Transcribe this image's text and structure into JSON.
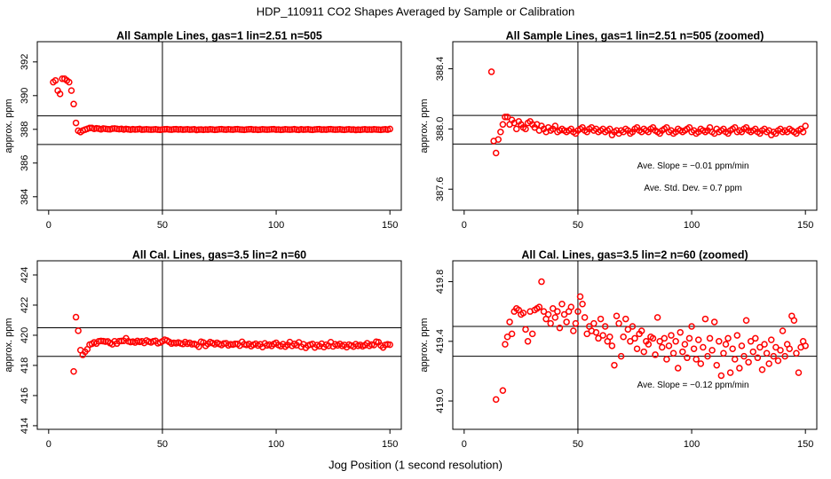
{
  "title": "HDP_110911  CO2 Shapes Averaged by Sample or Calibration",
  "xlabel": "Jog Position (1 second resolution)",
  "chart_data": [
    {
      "type": "scatter",
      "title": "All Sample Lines, gas=1 lin=2.51 n=505",
      "ylabel": "approx. ppm",
      "color": "#ff0000",
      "xlim": [
        -5,
        155
      ],
      "xticks": [
        0,
        50,
        100,
        150
      ],
      "ylim": [
        383.2,
        393.2
      ],
      "yticks": [
        384,
        386,
        388,
        390,
        392
      ],
      "hlines": [
        388.8,
        387.1
      ],
      "vlines": [
        50
      ],
      "x": [
        2,
        3,
        4,
        5,
        6,
        7,
        8,
        9,
        10,
        11,
        12,
        13,
        14,
        15,
        16,
        17,
        18,
        19,
        20,
        21,
        22,
        23,
        24,
        25,
        26,
        27,
        28,
        29,
        30,
        31,
        32,
        33,
        34,
        35,
        36,
        37,
        38,
        39,
        40,
        41,
        42,
        43,
        44,
        45,
        46,
        47,
        48,
        49,
        50,
        51,
        52,
        53,
        54,
        55,
        56,
        57,
        58,
        59,
        60,
        61,
        62,
        63,
        64,
        65,
        66,
        67,
        68,
        69,
        70,
        71,
        72,
        73,
        74,
        75,
        76,
        77,
        78,
        79,
        80,
        81,
        82,
        83,
        84,
        85,
        86,
        87,
        88,
        89,
        90,
        91,
        92,
        93,
        94,
        95,
        96,
        97,
        98,
        99,
        100,
        101,
        102,
        103,
        104,
        105,
        106,
        107,
        108,
        109,
        110,
        111,
        112,
        113,
        114,
        115,
        116,
        117,
        118,
        119,
        120,
        121,
        122,
        123,
        124,
        125,
        126,
        127,
        128,
        129,
        130,
        131,
        132,
        133,
        134,
        135,
        136,
        137,
        138,
        139,
        140,
        141,
        142,
        143,
        144,
        145,
        146,
        147,
        148,
        149,
        150
      ],
      "values": [
        390.8,
        390.9,
        390.3,
        390.1,
        391.0,
        391.0,
        390.9,
        390.8,
        390.3,
        389.5,
        388.38,
        387.92,
        387.84,
        387.93,
        387.98,
        388.03,
        388.08,
        388.08,
        388.03,
        388.06,
        388.04,
        388.0,
        388.05,
        388.03,
        388.01,
        388.0,
        388.04,
        388.05,
        388.03,
        388.01,
        388.03,
        387.99,
        388.02,
        388.0,
        387.98,
        388.01,
        387.99,
        388.0,
        388.02,
        387.98,
        387.99,
        388.0,
        387.99,
        387.98,
        387.99,
        388.0,
        387.98,
        387.97,
        387.99,
        388.0,
        388.01,
        387.99,
        387.98,
        388.0,
        388.01,
        387.99,
        388.0,
        387.98,
        387.99,
        388.0,
        387.98,
        387.99,
        388.0,
        387.96,
        387.98,
        387.99,
        387.97,
        387.99,
        387.98,
        388.0,
        387.99,
        387.97,
        387.98,
        388.0,
        388.01,
        387.99,
        387.98,
        388.0,
        387.99,
        387.98,
        388.0,
        388.01,
        387.99,
        387.98,
        387.97,
        387.99,
        388.0,
        388.01,
        387.98,
        387.99,
        387.97,
        387.98,
        388.0,
        387.99,
        387.98,
        387.99,
        388.0,
        388.01,
        387.98,
        387.99,
        387.97,
        387.98,
        388.0,
        387.99,
        387.98,
        387.99,
        388.01,
        387.98,
        387.97,
        388.0,
        387.98,
        387.99,
        388.0,
        387.98,
        387.97,
        387.99,
        388.0,
        388.01,
        387.98,
        387.99,
        387.98,
        388.0,
        388.01,
        387.99,
        387.98,
        387.99,
        388.0,
        387.98,
        387.97,
        387.99,
        388.0,
        387.98,
        387.99,
        387.96,
        387.98,
        387.97,
        387.99,
        388.0,
        387.98,
        387.99,
        387.98,
        388.0,
        387.99,
        387.98,
        387.97,
        387.99,
        388.0,
        387.98,
        388.02
      ]
    },
    {
      "type": "scatter",
      "title": "All Sample Lines, gas=1 lin=2.51 n=505 (zoomed)",
      "ylabel": "approx. ppm",
      "color": "#ff0000",
      "xlim": [
        -5,
        155
      ],
      "xticks": [
        0,
        50,
        100,
        150
      ],
      "ylim": [
        387.46,
        388.58
      ],
      "yticks": [
        387.6,
        {
          "value": 388,
          "label": "388.0"
        },
        388.4
      ],
      "hlines": [
        388.09,
        387.9
      ],
      "vlines": [
        50
      ],
      "annotations": [
        "Ave. Slope =  −0.01  ppm/min",
        "Ave. Std. Dev. =  0.7  ppm"
      ],
      "x": [
        12,
        13,
        14,
        15,
        16,
        17,
        18,
        19,
        20,
        21,
        22,
        23,
        24,
        25,
        26,
        27,
        28,
        29,
        30,
        31,
        32,
        33,
        34,
        35,
        36,
        37,
        38,
        39,
        40,
        41,
        42,
        43,
        44,
        45,
        46,
        47,
        48,
        49,
        50,
        51,
        52,
        53,
        54,
        55,
        56,
        57,
        58,
        59,
        60,
        61,
        62,
        63,
        64,
        65,
        66,
        67,
        68,
        69,
        70,
        71,
        72,
        73,
        74,
        75,
        76,
        77,
        78,
        79,
        80,
        81,
        82,
        83,
        84,
        85,
        86,
        87,
        88,
        89,
        90,
        91,
        92,
        93,
        94,
        95,
        96,
        97,
        98,
        99,
        100,
        101,
        102,
        103,
        104,
        105,
        106,
        107,
        108,
        109,
        110,
        111,
        112,
        113,
        114,
        115,
        116,
        117,
        118,
        119,
        120,
        121,
        122,
        123,
        124,
        125,
        126,
        127,
        128,
        129,
        130,
        131,
        132,
        133,
        134,
        135,
        136,
        137,
        138,
        139,
        140,
        141,
        142,
        143,
        144,
        145,
        146,
        147,
        148,
        149,
        150
      ],
      "values": [
        388.38,
        387.92,
        387.84,
        387.93,
        387.98,
        388.03,
        388.08,
        388.08,
        388.03,
        388.06,
        388.04,
        388.0,
        388.05,
        388.03,
        388.01,
        388.0,
        388.04,
        388.05,
        388.03,
        388.01,
        388.03,
        387.99,
        388.02,
        388.0,
        387.98,
        388.01,
        387.99,
        388.0,
        388.02,
        387.98,
        387.99,
        388.0,
        387.99,
        387.98,
        387.99,
        388.0,
        387.98,
        387.97,
        387.99,
        388.0,
        388.01,
        387.99,
        387.98,
        388.0,
        388.01,
        387.99,
        388.0,
        387.98,
        387.99,
        388.0,
        387.98,
        387.99,
        388.0,
        387.96,
        387.98,
        387.99,
        387.97,
        387.99,
        387.98,
        388.0,
        387.99,
        387.97,
        387.98,
        388.0,
        388.01,
        387.99,
        387.98,
        388.0,
        387.99,
        387.98,
        388.0,
        388.01,
        387.99,
        387.98,
        387.97,
        387.99,
        388.0,
        388.01,
        387.98,
        387.99,
        387.97,
        387.98,
        388.0,
        387.99,
        387.98,
        387.99,
        388.0,
        388.01,
        387.98,
        387.99,
        387.97,
        387.98,
        388.0,
        387.99,
        387.98,
        387.99,
        388.01,
        387.98,
        387.97,
        388.0,
        387.98,
        387.99,
        388.0,
        387.98,
        387.97,
        387.99,
        388.0,
        388.01,
        387.98,
        387.99,
        387.98,
        388.0,
        388.01,
        387.99,
        387.98,
        387.99,
        388.0,
        387.98,
        387.97,
        387.99,
        388.0,
        387.98,
        387.99,
        387.96,
        387.98,
        387.97,
        387.99,
        388.0,
        387.98,
        387.99,
        387.98,
        388.0,
        387.99,
        387.98,
        387.97,
        387.99,
        388.0,
        387.98,
        388.02
      ]
    },
    {
      "type": "scatter",
      "title": "All Cal. Lines, gas=3.5 lin=2 n=60",
      "ylabel": "approx. ppm",
      "color": "#ff0000",
      "xlim": [
        -5,
        155
      ],
      "xticks": [
        0,
        50,
        100,
        150
      ],
      "ylim": [
        413.76,
        424.94
      ],
      "yticks": [
        414,
        416,
        418,
        420,
        422,
        424
      ],
      "hlines": [
        420.5,
        418.6
      ],
      "vlines": [
        50
      ],
      "x": [
        11,
        12,
        13,
        14,
        15,
        16,
        17,
        18,
        19,
        20,
        21,
        22,
        23,
        24,
        25,
        26,
        27,
        28,
        29,
        30,
        31,
        32,
        33,
        34,
        35,
        36,
        37,
        38,
        39,
        40,
        41,
        42,
        43,
        44,
        45,
        46,
        47,
        48,
        49,
        50,
        51,
        52,
        53,
        54,
        55,
        56,
        57,
        58,
        59,
        60,
        61,
        62,
        63,
        64,
        65,
        66,
        67,
        68,
        69,
        70,
        71,
        72,
        73,
        74,
        75,
        76,
        77,
        78,
        79,
        80,
        81,
        82,
        83,
        84,
        85,
        86,
        87,
        88,
        89,
        90,
        91,
        92,
        93,
        94,
        95,
        96,
        97,
        98,
        99,
        100,
        101,
        102,
        103,
        104,
        105,
        106,
        107,
        108,
        109,
        110,
        111,
        112,
        113,
        114,
        115,
        116,
        117,
        118,
        119,
        120,
        121,
        122,
        123,
        124,
        125,
        126,
        127,
        128,
        129,
        130,
        131,
        132,
        133,
        134,
        135,
        136,
        137,
        138,
        139,
        140,
        141,
        142,
        143,
        144,
        145,
        146,
        147,
        148,
        149,
        150
      ],
      "values": [
        417.6,
        421.2,
        420.3,
        419.01,
        418.7,
        418.9,
        419.07,
        419.38,
        419.43,
        419.53,
        419.45,
        419.6,
        419.62,
        419.61,
        419.58,
        419.59,
        419.48,
        419.4,
        419.6,
        419.45,
        419.61,
        419.62,
        419.63,
        419.8,
        419.6,
        419.55,
        419.58,
        419.52,
        419.62,
        419.56,
        419.6,
        419.49,
        419.65,
        419.58,
        419.53,
        419.6,
        419.63,
        419.47,
        419.52,
        419.6,
        419.7,
        419.65,
        419.56,
        419.45,
        419.5,
        419.47,
        419.52,
        419.46,
        419.42,
        419.55,
        419.44,
        419.5,
        419.4,
        419.43,
        419.37,
        419.24,
        419.57,
        419.52,
        419.3,
        419.43,
        419.55,
        419.48,
        419.4,
        419.5,
        419.42,
        419.35,
        419.45,
        419.47,
        419.33,
        419.4,
        419.38,
        419.43,
        419.42,
        419.31,
        419.56,
        419.4,
        419.36,
        419.42,
        419.28,
        419.37,
        419.44,
        419.32,
        419.4,
        419.22,
        419.46,
        419.33,
        419.38,
        419.29,
        419.42,
        419.5,
        419.35,
        419.28,
        419.41,
        419.25,
        419.36,
        419.55,
        419.3,
        419.42,
        419.34,
        419.53,
        419.24,
        419.4,
        419.17,
        419.32,
        419.38,
        419.42,
        419.19,
        419.35,
        419.28,
        419.44,
        419.22,
        419.37,
        419.3,
        419.54,
        419.26,
        419.4,
        419.33,
        419.42,
        419.29,
        419.36,
        419.21,
        419.38,
        419.32,
        419.25,
        419.41,
        419.3,
        419.36,
        419.27,
        419.34,
        419.47,
        419.3,
        419.38,
        419.35,
        419.57,
        419.54,
        419.32,
        419.19,
        419.36,
        419.4,
        419.37
      ]
    },
    {
      "type": "scatter",
      "title": "All Cal. Lines, gas=3.5 lin=2 n=60 (zoomed)",
      "ylabel": "approx. ppm",
      "color": "#ff0000",
      "xlim": [
        -5,
        155
      ],
      "xticks": [
        0,
        50,
        100,
        150
      ],
      "ylim": [
        418.81,
        419.94
      ],
      "yticks": [
        {
          "value": 419,
          "label": "419.0"
        },
        419.4,
        419.8
      ],
      "hlines": [
        419.5,
        419.3
      ],
      "vlines": [
        50
      ],
      "annotations": [
        "Ave. Slope =  −0.12  ppm/min"
      ],
      "x": [
        14,
        17,
        18,
        19,
        20,
        21,
        22,
        23,
        24,
        25,
        26,
        27,
        28,
        29,
        30,
        31,
        32,
        33,
        34,
        35,
        36,
        37,
        38,
        39,
        40,
        41,
        42,
        43,
        44,
        45,
        46,
        47,
        48,
        49,
        50,
        51,
        52,
        53,
        54,
        55,
        56,
        57,
        58,
        59,
        60,
        61,
        62,
        63,
        64,
        65,
        66,
        67,
        68,
        69,
        70,
        71,
        72,
        73,
        74,
        75,
        76,
        77,
        78,
        79,
        80,
        81,
        82,
        83,
        84,
        85,
        86,
        87,
        88,
        89,
        90,
        91,
        92,
        93,
        94,
        95,
        96,
        97,
        98,
        99,
        100,
        101,
        102,
        103,
        104,
        105,
        106,
        107,
        108,
        109,
        110,
        111,
        112,
        113,
        114,
        115,
        116,
        117,
        118,
        119,
        120,
        121,
        122,
        123,
        124,
        125,
        126,
        127,
        128,
        129,
        130,
        131,
        132,
        133,
        134,
        135,
        136,
        137,
        138,
        139,
        140,
        141,
        142,
        143,
        144,
        145,
        146,
        147,
        148,
        149,
        150
      ],
      "values": [
        419.01,
        419.07,
        419.38,
        419.43,
        419.53,
        419.45,
        419.6,
        419.62,
        419.61,
        419.58,
        419.59,
        419.48,
        419.4,
        419.6,
        419.45,
        419.61,
        419.62,
        419.63,
        419.8,
        419.6,
        419.55,
        419.58,
        419.52,
        419.62,
        419.56,
        419.6,
        419.49,
        419.65,
        419.58,
        419.53,
        419.6,
        419.63,
        419.47,
        419.52,
        419.6,
        419.7,
        419.65,
        419.56,
        419.45,
        419.5,
        419.47,
        419.52,
        419.46,
        419.42,
        419.55,
        419.44,
        419.5,
        419.4,
        419.43,
        419.37,
        419.24,
        419.57,
        419.52,
        419.3,
        419.43,
        419.55,
        419.48,
        419.4,
        419.5,
        419.42,
        419.35,
        419.45,
        419.47,
        419.33,
        419.4,
        419.38,
        419.43,
        419.42,
        419.31,
        419.56,
        419.4,
        419.36,
        419.42,
        419.28,
        419.37,
        419.44,
        419.32,
        419.4,
        419.22,
        419.46,
        419.33,
        419.38,
        419.29,
        419.42,
        419.5,
        419.35,
        419.28,
        419.41,
        419.25,
        419.36,
        419.55,
        419.3,
        419.42,
        419.34,
        419.53,
        419.24,
        419.4,
        419.17,
        419.32,
        419.38,
        419.42,
        419.19,
        419.35,
        419.28,
        419.44,
        419.22,
        419.37,
        419.3,
        419.54,
        419.26,
        419.4,
        419.33,
        419.42,
        419.29,
        419.36,
        419.21,
        419.38,
        419.32,
        419.25,
        419.41,
        419.3,
        419.36,
        419.27,
        419.34,
        419.47,
        419.3,
        419.38,
        419.35,
        419.57,
        419.54,
        419.32,
        419.19,
        419.36,
        419.4,
        419.37
      ]
    }
  ]
}
